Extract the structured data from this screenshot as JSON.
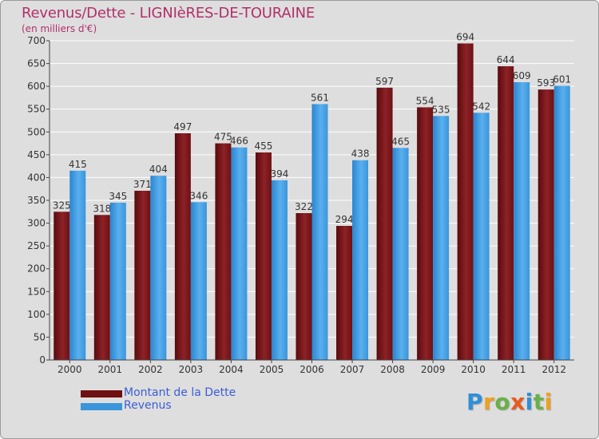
{
  "title": "Revenus/Dette - LIGNIèRES-DE-TOURAINE",
  "subtitle": "(en milliers d'€)",
  "logo": {
    "letters": [
      {
        "ch": "P",
        "color": "#2f8fd8"
      },
      {
        "ch": "r",
        "color": "#f0a020"
      },
      {
        "ch": "o",
        "color": "#6ab04a"
      },
      {
        "ch": "x",
        "color": "#e85a20"
      },
      {
        "ch": "i",
        "color": "#2f8fd8"
      },
      {
        "ch": "t",
        "color": "#6ab04a"
      },
      {
        "ch": "i",
        "color": "#f0a020"
      }
    ]
  },
  "legend": [
    {
      "label": "Montant de la Dette",
      "color": "#6e0f12"
    },
    {
      "label": "Revenus",
      "color": "#3a95dc"
    }
  ],
  "chart_data": {
    "type": "bar",
    "categories": [
      "2000",
      "2001",
      "2002",
      "2003",
      "2004",
      "2005",
      "2006",
      "2007",
      "2008",
      "2009",
      "2010",
      "2011",
      "2012"
    ],
    "series": [
      {
        "name": "Montant de la Dette",
        "color": "#6e0f12",
        "values": [
          325,
          318,
          371,
          497,
          475,
          455,
          322,
          294,
          597,
          554,
          694,
          644,
          593
        ]
      },
      {
        "name": "Revenus",
        "color": "#3a95dc",
        "values": [
          415,
          345,
          404,
          346,
          466,
          394,
          561,
          438,
          465,
          535,
          542,
          609,
          601
        ]
      }
    ],
    "ylim": [
      0,
      700
    ],
    "yticks": [
      0,
      50,
      100,
      150,
      200,
      250,
      300,
      350,
      400,
      450,
      500,
      550,
      600,
      650,
      700
    ],
    "grid": true,
    "legend_position": "bottom-left"
  }
}
